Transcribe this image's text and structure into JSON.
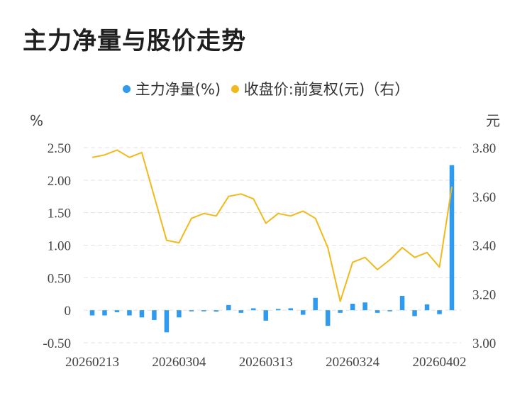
{
  "title": "主力净量与股价走势",
  "legend": [
    {
      "label": "主力净量(%)",
      "color": "#2e9bf0"
    },
    {
      "label": "收盘价:前复权(元)（右）",
      "color": "#f2b91c"
    }
  ],
  "chart_data": {
    "type": "bar+line",
    "title": "主力净量与股价走势",
    "left_unit": "%",
    "right_unit": "元",
    "left_ticks": [
      "2.50",
      "2.00",
      "1.50",
      "1.00",
      "0.50",
      "0",
      "-0.50"
    ],
    "right_ticks": [
      "3.80",
      "3.60",
      "3.40",
      "3.20",
      "3.00"
    ],
    "ylim_left": [
      -0.5,
      2.5
    ],
    "ylim_right": [
      3.0,
      3.8
    ],
    "x_tick_labels": [
      "20260213",
      "20260304",
      "20260313",
      "20260324",
      "20260402"
    ],
    "x_tick_indices": [
      0,
      7,
      14,
      21,
      28
    ],
    "grid": true,
    "series": [
      {
        "name": "主力净量(%)",
        "type": "bar",
        "axis": "left",
        "color": "#2e9bf0",
        "values": [
          -0.08,
          -0.08,
          -0.03,
          -0.08,
          -0.11,
          -0.15,
          -0.34,
          -0.11,
          -0.01,
          -0.01,
          -0.02,
          0.08,
          -0.04,
          0.03,
          -0.16,
          0.02,
          0.03,
          -0.07,
          0.19,
          -0.24,
          -0.04,
          0.1,
          0.12,
          -0.04,
          -0.01,
          0.22,
          -0.09,
          0.09,
          -0.06,
          2.23
        ]
      },
      {
        "name": "收盘价:前复权(元)（右）",
        "type": "line",
        "axis": "right",
        "color": "#f2b91c",
        "values": [
          3.76,
          3.77,
          3.79,
          3.76,
          3.78,
          3.6,
          3.42,
          3.41,
          3.51,
          3.53,
          3.52,
          3.6,
          3.61,
          3.59,
          3.49,
          3.53,
          3.52,
          3.54,
          3.51,
          3.39,
          3.17,
          3.33,
          3.35,
          3.3,
          3.34,
          3.39,
          3.35,
          3.37,
          3.31,
          3.64
        ]
      }
    ]
  }
}
